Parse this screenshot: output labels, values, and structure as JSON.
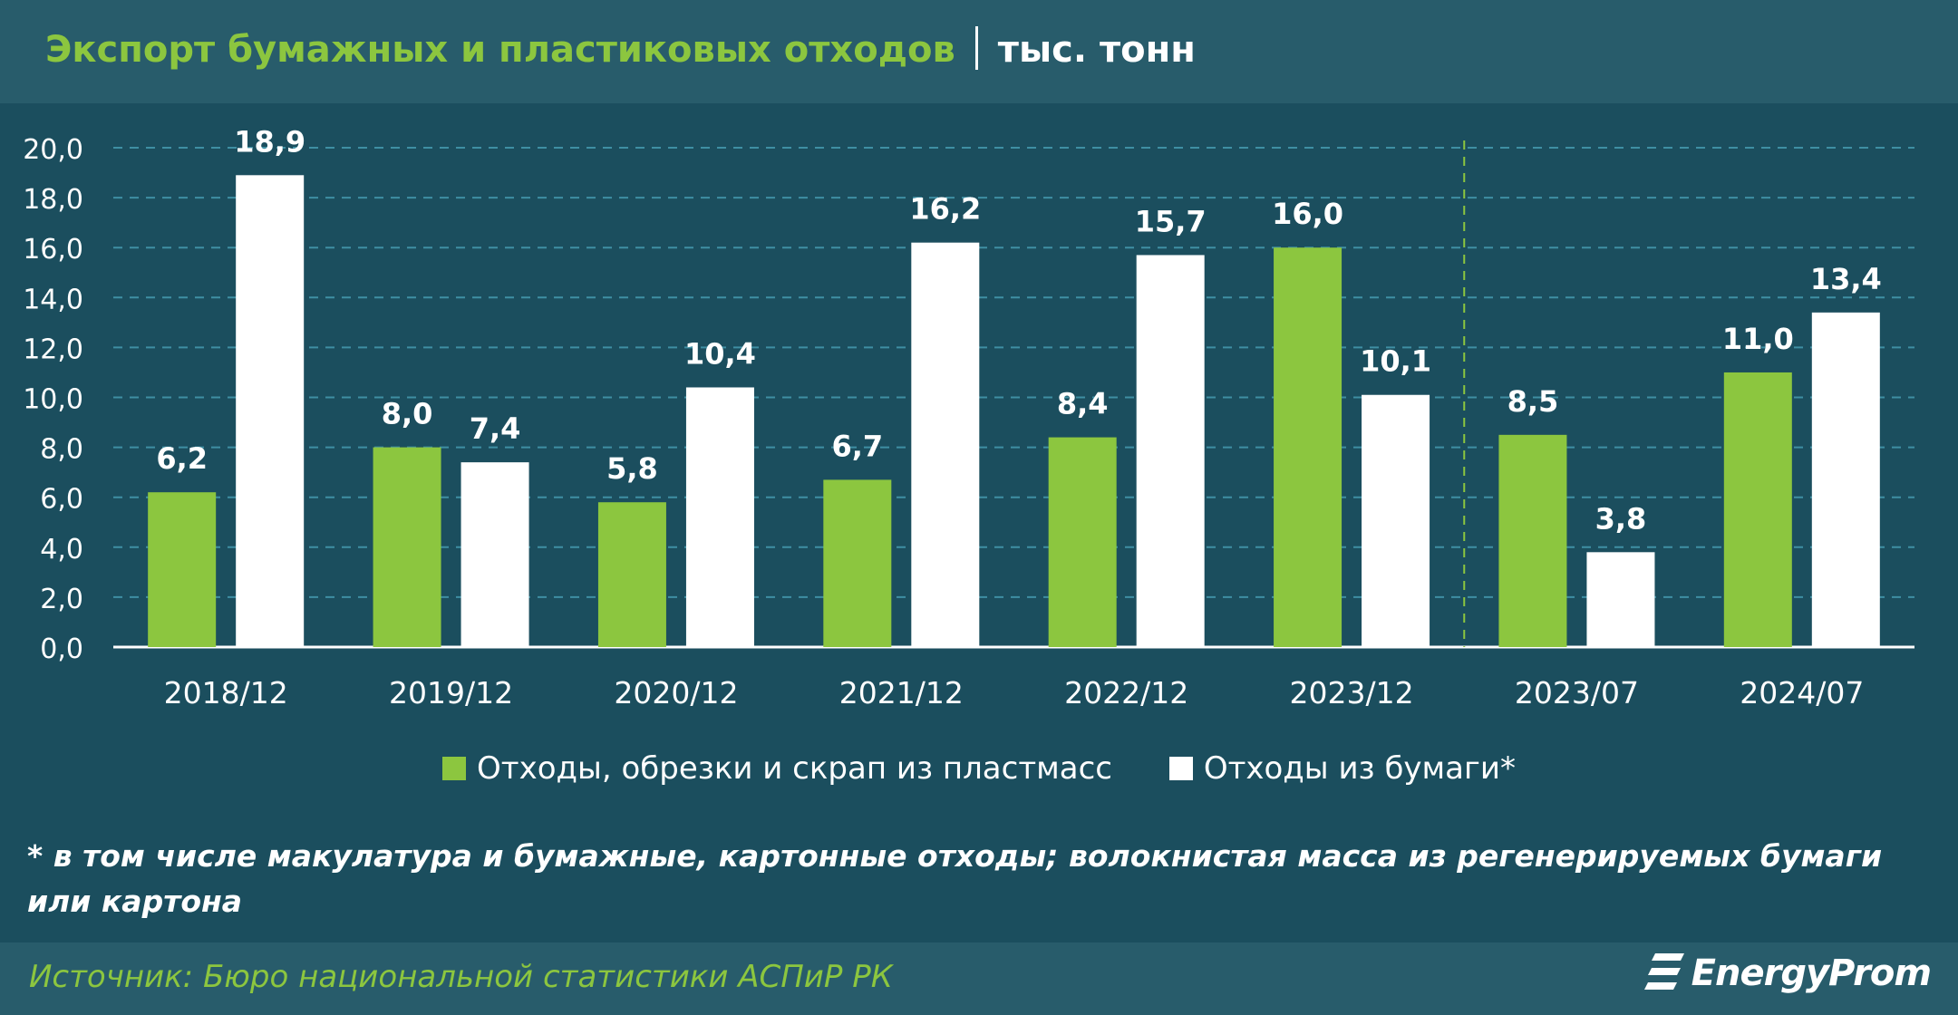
{
  "header": {
    "title": "Экспорт бумажных и пластиковых отходов",
    "unit": "тыс. тонн"
  },
  "colors": {
    "background": "#1b4e5e",
    "header": "#285c6b",
    "plastic": "#8cc63f",
    "paper": "#ffffff",
    "grid": "#3f8fa3",
    "accent_text": "#8cc63f"
  },
  "chart_data": {
    "type": "bar",
    "categories": [
      "2018/12",
      "2019/12",
      "2020/12",
      "2021/12",
      "2022/12",
      "2023/12",
      "2023/07",
      "2024/07"
    ],
    "series": [
      {
        "name": "Отходы, обрезки и скрап из пластмасс",
        "color": "#8cc63f",
        "values": [
          6.2,
          8.0,
          5.8,
          6.7,
          8.4,
          16.0,
          8.5,
          11.0
        ],
        "labels": [
          "6,2",
          "8,0",
          "5,8",
          "6,7",
          "8,4",
          "16,0",
          "8,5",
          "11,0"
        ]
      },
      {
        "name": "Отходы из бумаги*",
        "color": "#ffffff",
        "values": [
          18.9,
          7.4,
          10.4,
          16.2,
          15.7,
          10.1,
          3.8,
          13.4
        ],
        "labels": [
          "18,9",
          "7,4",
          "10,4",
          "16,2",
          "15,7",
          "10,1",
          "3,8",
          "13,4"
        ]
      }
    ],
    "ylim": [
      0,
      20
    ],
    "yticks": [
      0,
      2,
      4,
      6,
      8,
      10,
      12,
      14,
      16,
      18,
      20
    ],
    "ytick_labels": [
      "0,0",
      "2,0",
      "4,0",
      "6,0",
      "8,0",
      "10,0",
      "12,0",
      "14,0",
      "16,0",
      "18,0",
      "20,0"
    ],
    "grid": true,
    "legend_position": "bottom-center",
    "period_separator_after_index": 5
  },
  "footnote": "* в том числе макулатура и бумажные, картонные отходы; волокнистая масса из регенерируемых бумаги или картона",
  "source": "Источник: Бюро национальной статистики АСПиР РК",
  "logo": {
    "text": "EnergyProm",
    "icon": "energyprom-logo-icon"
  }
}
